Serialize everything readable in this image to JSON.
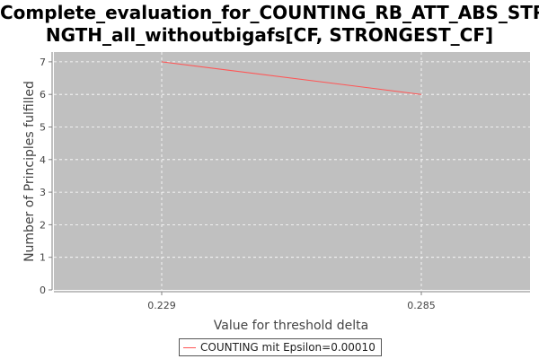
{
  "chart_data": {
    "type": "line",
    "title_lines": [
      "Complete_evaluation_for_COUNTING_RB_ATT_ABS_STRE",
      "NGTH_all_withoutbigafs[CF, STRONGEST_CF]"
    ],
    "xlabel": "Value for threshold delta",
    "ylabel": "Number of Principles fulfilled",
    "x_categories": [
      "0.229",
      "0.285"
    ],
    "yticks": [
      "0",
      "1",
      "2",
      "3",
      "4",
      "5",
      "6",
      "7"
    ],
    "ylim": [
      0,
      7.3
    ],
    "grid": true,
    "legend_position": "bottom-center",
    "series": [
      {
        "name": "COUNTING mit Epsilon=0.00010",
        "values": [
          7,
          6
        ],
        "color": "#ff5555"
      }
    ],
    "plot_background": "#c0c0c0"
  }
}
